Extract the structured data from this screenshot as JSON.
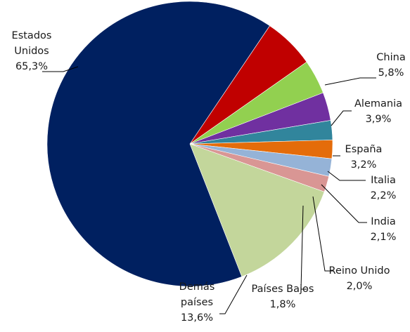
{
  "chart_data": {
    "type": "pie",
    "title": "",
    "start_angle_deg": 0,
    "direction": "clockwise",
    "slices": [
      {
        "label_lines": [
          "China",
          "5,8%"
        ],
        "value": 5.8,
        "color": "#c00000"
      },
      {
        "label_lines": [
          "Alemania",
          "3,9%"
        ],
        "value": 3.9,
        "color": "#92d050"
      },
      {
        "label_lines": [
          "España",
          "3,2%"
        ],
        "value": 3.2,
        "color": "#7030a0"
      },
      {
        "label_lines": [
          "Italia",
          "2,2%"
        ],
        "value": 2.2,
        "color": "#31859c"
      },
      {
        "label_lines": [
          "India",
          "2,1%"
        ],
        "value": 2.1,
        "color": "#e46c0a"
      },
      {
        "label_lines": [
          "Reino Unido",
          "2,0%"
        ],
        "value": 2.0,
        "color": "#95b3d7"
      },
      {
        "label_lines": [
          "Países Bajos",
          "1,8%"
        ],
        "value": 1.8,
        "color": "#d99694"
      },
      {
        "label_lines": [
          "Demás",
          "países",
          "13,6%"
        ],
        "value": 13.6,
        "color": "#c3d69b"
      },
      {
        "label_lines": [
          "Estados",
          "Unidos",
          "65,3%"
        ],
        "value": 65.3,
        "color": "#002060"
      }
    ]
  }
}
